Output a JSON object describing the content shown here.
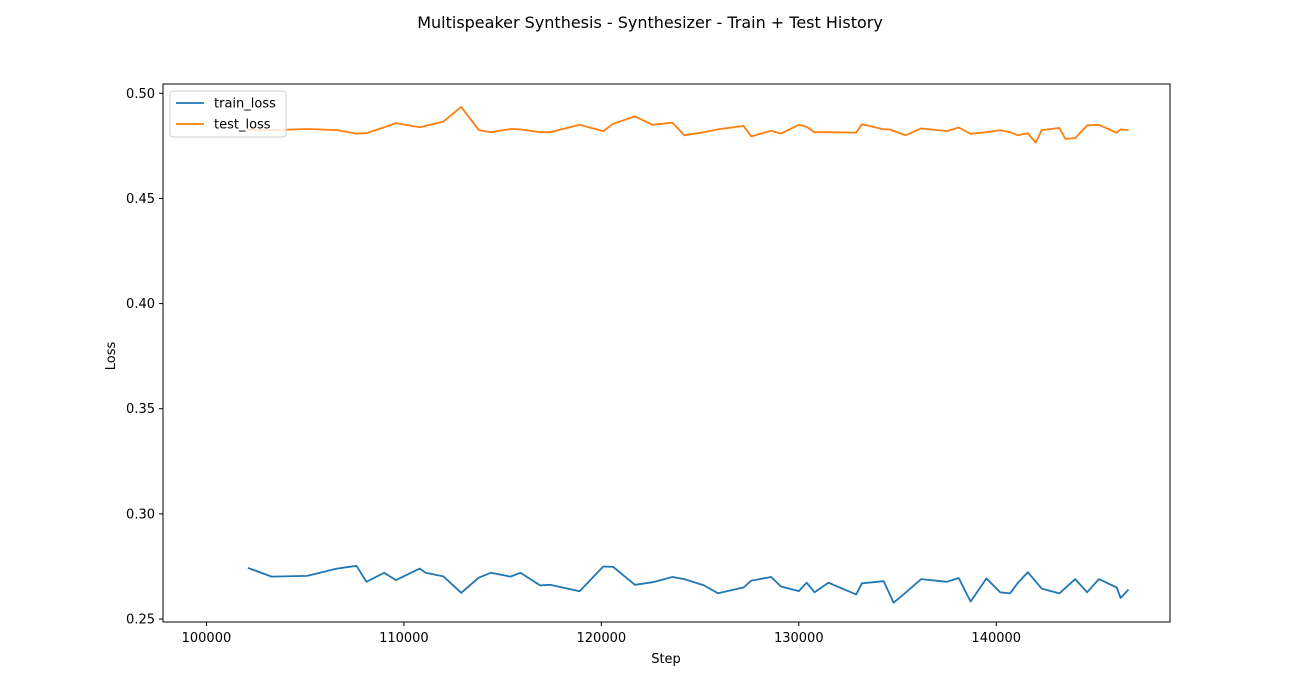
{
  "chart_data": {
    "type": "line",
    "title": "Multispeaker Synthesis - Synthesizer - Train + Test History",
    "xlabel": "Step",
    "ylabel": "Loss",
    "xlim": [
      97800,
      148800
    ],
    "ylim": [
      0.2486,
      0.5044
    ],
    "x_ticks": [
      100000,
      110000,
      120000,
      130000,
      140000
    ],
    "y_ticks": [
      0.25,
      0.3,
      0.35,
      0.4,
      0.45,
      0.5
    ],
    "x_tick_labels": [
      "100000",
      "110000",
      "120000",
      "130000",
      "140000"
    ],
    "y_tick_labels": [
      "0.25",
      "0.30",
      "0.35",
      "0.40",
      "0.45",
      "0.50"
    ],
    "grid": false,
    "legend_position": "upper-left",
    "series": [
      {
        "name": "train_loss",
        "color": "#1f77b4",
        "x": [
          102100,
          103300,
          105100,
          106600,
          107600,
          108100,
          109000,
          109600,
          110800,
          111100,
          112000,
          112900,
          113800,
          114400,
          115400,
          115900,
          116900,
          117400,
          118900,
          120100,
          120600,
          121700,
          122600,
          123600,
          124200,
          125200,
          125900,
          127200,
          127600,
          128600,
          129100,
          130000,
          130400,
          130800,
          131500,
          132900,
          133200,
          134300,
          134800,
          135400,
          136200,
          137500,
          138100,
          138700,
          139500,
          140200,
          140700,
          141100,
          141600,
          142300,
          143200,
          144000,
          144600,
          145200,
          146100,
          146300,
          146700
        ],
        "values": [
          0.2743,
          0.2702,
          0.2705,
          0.274,
          0.2753,
          0.2677,
          0.272,
          0.2685,
          0.274,
          0.272,
          0.2703,
          0.2625,
          0.2697,
          0.272,
          0.2702,
          0.272,
          0.266,
          0.2663,
          0.2632,
          0.275,
          0.2748,
          0.2663,
          0.2675,
          0.27,
          0.269,
          0.266,
          0.2623,
          0.265,
          0.2683,
          0.27,
          0.2655,
          0.2633,
          0.2673,
          0.2627,
          0.2673,
          0.2617,
          0.267,
          0.268,
          0.2578,
          0.2625,
          0.269,
          0.2677,
          0.2695,
          0.2583,
          0.2693,
          0.2627,
          0.2622,
          0.2673,
          0.2723,
          0.2645,
          0.2622,
          0.269,
          0.2627,
          0.269,
          0.265,
          0.26,
          0.264
        ]
      },
      {
        "name": "test_loss",
        "color": "#ff7f0e",
        "x": [
          102100,
          103300,
          105100,
          106600,
          107600,
          108100,
          109000,
          109600,
          110800,
          112000,
          112900,
          113800,
          114400,
          115400,
          115900,
          116900,
          117400,
          118900,
          120100,
          120600,
          121700,
          122600,
          123600,
          124200,
          125200,
          125900,
          127200,
          127600,
          128600,
          129100,
          130000,
          130400,
          130800,
          131500,
          132900,
          133200,
          134300,
          134600,
          135400,
          136200,
          137500,
          138100,
          138700,
          139500,
          140200,
          140700,
          141100,
          141600,
          142000,
          142300,
          143200,
          143500,
          144000,
          144600,
          145200,
          146100,
          146300,
          146700
        ],
        "values": [
          0.4827,
          0.4825,
          0.483,
          0.4825,
          0.4808,
          0.481,
          0.4838,
          0.4858,
          0.4838,
          0.4865,
          0.4935,
          0.4825,
          0.4815,
          0.483,
          0.4828,
          0.4815,
          0.4815,
          0.485,
          0.482,
          0.4855,
          0.489,
          0.485,
          0.486,
          0.48,
          0.4815,
          0.4828,
          0.4845,
          0.4795,
          0.4822,
          0.4808,
          0.485,
          0.484,
          0.4815,
          0.4815,
          0.4813,
          0.4853,
          0.4828,
          0.4828,
          0.48,
          0.4833,
          0.482,
          0.4837,
          0.4807,
          0.4815,
          0.4825,
          0.4815,
          0.48,
          0.481,
          0.4765,
          0.4825,
          0.4835,
          0.4783,
          0.4787,
          0.4847,
          0.485,
          0.4812,
          0.4828,
          0.4825
        ]
      }
    ]
  }
}
